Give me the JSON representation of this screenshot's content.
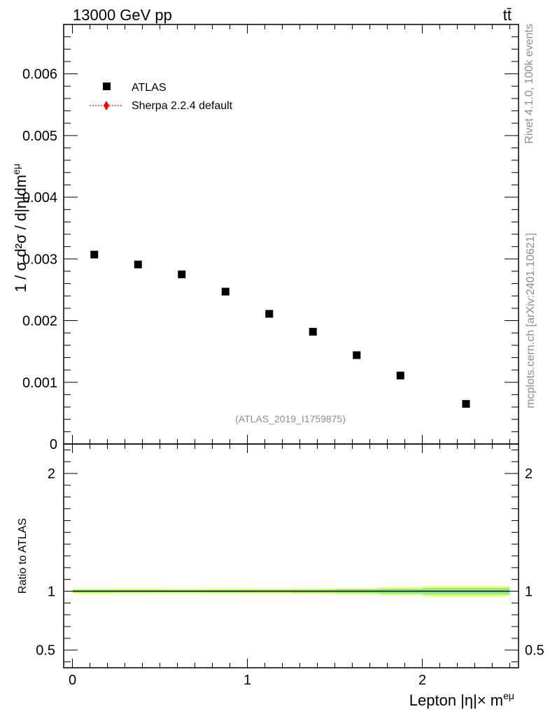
{
  "header": {
    "energy_label": "13000 GeV pp",
    "process_label": "tt̄"
  },
  "side_labels": {
    "rivet": "Rivet 4.1.0,  100k events",
    "mcplots": "mcplots.cern.ch [arXiv:2401.10621]"
  },
  "analysis_label": "(ATLAS_2019_I1759875)",
  "legend": {
    "data_label": "ATLAS",
    "mc_label": "Sherpa 2.2.4 default"
  },
  "colors": {
    "data": "#000000",
    "mc": "#ff0000",
    "band_outer": "#ffff80",
    "band_inner": "#90ee90"
  },
  "chart_data": [
    {
      "type": "scatter",
      "ylabel": "1 / σ d²σ / d|η|dm^eμ",
      "xlim": [
        -0.05,
        2.55
      ],
      "ylim": [
        0,
        0.0068
      ],
      "x_ticks": [
        0,
        1,
        2
      ],
      "y_ticks": [
        0,
        0.001,
        0.002,
        0.003,
        0.004,
        0.005,
        0.006
      ],
      "y_tick_labels": [
        "0",
        "0.001",
        "0.002",
        "0.003",
        "0.004",
        "0.005",
        "0.006"
      ],
      "series": [
        {
          "name": "ATLAS",
          "x": [
            0.125,
            0.375,
            0.625,
            0.875,
            1.125,
            1.375,
            1.625,
            1.875,
            2.25
          ],
          "y": [
            0.00307,
            0.00291,
            0.00275,
            0.00247,
            0.00211,
            0.00182,
            0.00144,
            0.00111,
            0.00065
          ]
        }
      ]
    },
    {
      "type": "line",
      "xlabel": "Lepton |η|× m^eμ",
      "ylabel": "Ratio to ATLAS",
      "xlim": [
        -0.05,
        2.55
      ],
      "ylim": [
        0.35,
        2.25
      ],
      "x_ticks": [
        0,
        1,
        2
      ],
      "x_tick_labels": [
        "0",
        "1",
        "2"
      ],
      "y_ticks": [
        0.5,
        1,
        2
      ],
      "y_tick_labels": [
        "0.5",
        "1",
        "2"
      ],
      "reference_line": 1,
      "band_edges": [
        0,
        0.25,
        0.5,
        0.75,
        1.0,
        1.25,
        1.5,
        1.75,
        2.0,
        2.5
      ],
      "band_outer_halfwidth": [
        0.022,
        0.021,
        0.02,
        0.021,
        0.023,
        0.026,
        0.03,
        0.035,
        0.045
      ],
      "band_inner_halfwidth": [
        0.012,
        0.011,
        0.011,
        0.012,
        0.013,
        0.015,
        0.018,
        0.022,
        0.03
      ]
    }
  ]
}
